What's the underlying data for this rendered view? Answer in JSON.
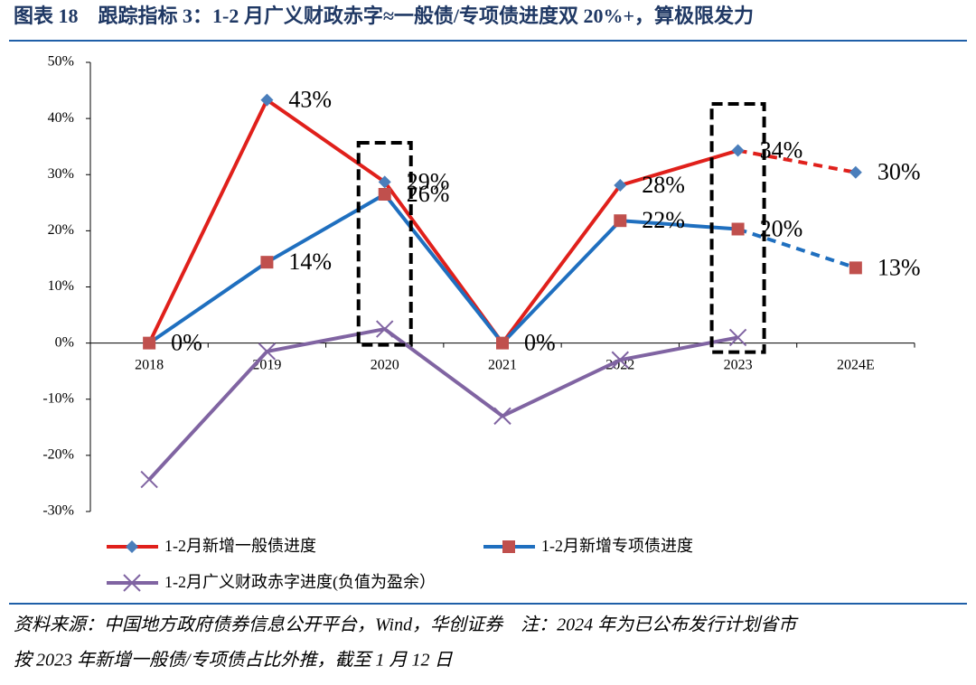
{
  "chart_data": {
    "type": "line",
    "title": "图表 18　跟踪指标 3：1-2 月广义财政赤字≈一般债/专项债进度双 20%+，算极限发力",
    "categories": [
      "2018",
      "2019",
      "2020",
      "2021",
      "2022",
      "2023",
      "2024E"
    ],
    "series": [
      {
        "name": "1-2月新增一般债进度",
        "color": "#e0201b",
        "marker": "diamond",
        "marker_color": "#4a7ebb",
        "values": [
          0,
          43.3,
          28.7,
          0,
          28.1,
          34.3,
          30.4
        ],
        "value_labels": [
          "0%",
          "43%",
          "29%",
          "0%",
          "28%",
          "34%",
          "30%"
        ]
      },
      {
        "name": "1-2月新增专项债进度",
        "color": "#1f6fbf",
        "marker": "square",
        "marker_color": "#c0504d",
        "values": [
          0,
          14.4,
          26.5,
          0,
          21.8,
          20.3,
          13.4
        ],
        "value_labels": [
          null,
          "14%",
          "26%",
          null,
          "22%",
          "20%",
          "13%"
        ]
      },
      {
        "name": "1-2月广义财政赤字进度(负值为盈余）",
        "color": "#8064a2",
        "marker": "x",
        "marker_color": "#8064a2",
        "values": [
          -24.3,
          -1.5,
          2.5,
          -13,
          -3,
          1,
          null
        ]
      }
    ],
    "dash_start": 5,
    "highlight": [
      2,
      5
    ],
    "ylim": [
      -30,
      50
    ],
    "yticks": [
      {
        "value": -30,
        "label": "-30%"
      },
      {
        "value": -20,
        "label": "-20%"
      },
      {
        "value": -10,
        "label": "-10%"
      },
      {
        "value": 0,
        "label": "0%"
      },
      {
        "value": 10,
        "label": "10%"
      },
      {
        "value": 20,
        "label": "20%"
      },
      {
        "value": 30,
        "label": "30%"
      },
      {
        "value": 40,
        "label": "40%"
      },
      {
        "value": 50,
        "label": "50%"
      }
    ],
    "legend": "bottom",
    "source": [
      "资料来源：中国地方政府债券信息公开平台，Wind，华创证券　注：2024 年为已公布发行计划省市",
      "按 2023 年新增一般债/专项债占比外推，截至 1 月 12 日"
    ]
  }
}
